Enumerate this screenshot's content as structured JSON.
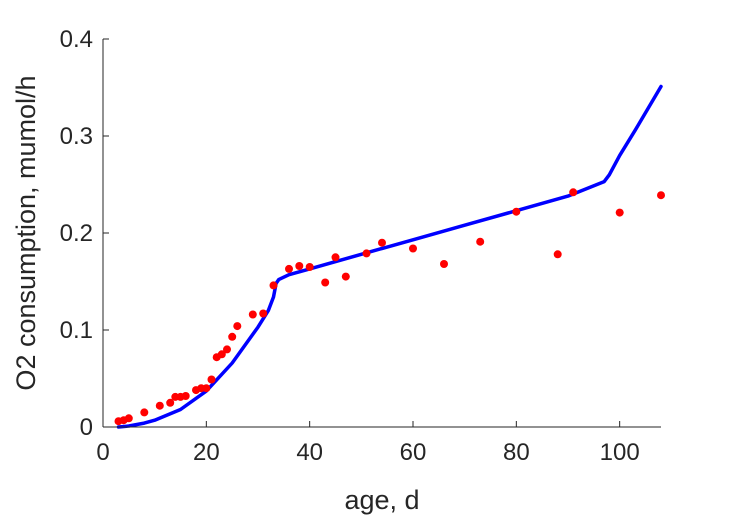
{
  "chart_data": {
    "type": "scatter",
    "title": "",
    "xlabel": "age, d",
    "ylabel": "O2 consumption, mumol/h",
    "xlim": [
      0,
      108
    ],
    "ylim": [
      0,
      0.4
    ],
    "xticks": [
      0,
      20,
      40,
      60,
      80,
      100
    ],
    "yticks": [
      0,
      0.1,
      0.2,
      0.3,
      0.4
    ],
    "xtick_labels": [
      "0",
      "20",
      "40",
      "60",
      "80",
      "100"
    ],
    "ytick_labels": [
      "0",
      "0.1",
      "0.2",
      "0.3",
      "0.4"
    ],
    "grid": false,
    "legend": null,
    "series": [
      {
        "kind": "points",
        "color": "#ff0000",
        "x": [
          3,
          4,
          5,
          8,
          11,
          13,
          14,
          15,
          16,
          18,
          19,
          20,
          21,
          22,
          23,
          24,
          25,
          26,
          29,
          31,
          33,
          36,
          38,
          40,
          43,
          45,
          47,
          51,
          54,
          60,
          66,
          73,
          80,
          88,
          91,
          100,
          108
        ],
        "y": [
          0.006,
          0.007,
          0.009,
          0.015,
          0.022,
          0.025,
          0.031,
          0.031,
          0.032,
          0.038,
          0.04,
          0.04,
          0.049,
          0.072,
          0.075,
          0.08,
          0.093,
          0.104,
          0.116,
          0.117,
          0.146,
          0.163,
          0.166,
          0.165,
          0.149,
          0.175,
          0.155,
          0.179,
          0.19,
          0.184,
          0.168,
          0.191,
          0.222,
          0.178,
          0.242,
          0.221,
          0.239
        ]
      },
      {
        "kind": "curve",
        "color": "#0000ff",
        "x": [
          3,
          5,
          8,
          10,
          15,
          20,
          25,
          30,
          32,
          33,
          33.5,
          34,
          36,
          40,
          50,
          60,
          70,
          80,
          90,
          97,
          98,
          100,
          103,
          108
        ],
        "y": [
          0,
          0.001,
          0.004,
          0.007,
          0.018,
          0.037,
          0.066,
          0.103,
          0.12,
          0.134,
          0.148,
          0.152,
          0.157,
          0.163,
          0.178,
          0.193,
          0.208,
          0.223,
          0.238,
          0.253,
          0.26,
          0.28,
          0.306,
          0.351
        ]
      }
    ]
  }
}
